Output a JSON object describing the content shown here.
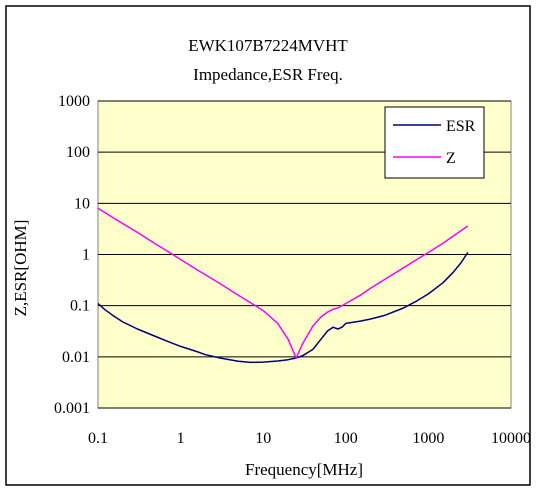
{
  "chart_data": {
    "type": "line",
    "title": "EWK107B7224MVHT",
    "subtitle": "Impedance,ESR Freq.",
    "xlabel": "Frequency[MHz]",
    "ylabel": "Z,ESR[OHM]",
    "x_scale": "log",
    "y_scale": "log",
    "xlim": [
      0.1,
      10000
    ],
    "ylim": [
      0.001,
      1000
    ],
    "x_ticks": [
      "0.1",
      "1",
      "10",
      "100",
      "1000",
      "10000"
    ],
    "y_ticks": [
      "0.001",
      "0.01",
      "0.1",
      "1",
      "10",
      "100",
      "1000"
    ],
    "grid": true,
    "legend_position": "top-right",
    "plot_background": "#ffffcc",
    "series": [
      {
        "name": "ESR",
        "color": "#000080",
        "x": [
          0.1,
          0.12,
          0.15,
          0.2,
          0.3,
          0.5,
          0.7,
          1,
          1.5,
          2,
          3,
          5,
          7,
          10,
          15,
          20,
          25,
          30,
          40,
          50,
          60,
          70,
          80,
          90,
          100,
          120,
          150,
          200,
          300,
          500,
          700,
          1000,
          1500,
          2000,
          2500,
          3000
        ],
        "y": [
          0.11,
          0.085,
          0.065,
          0.048,
          0.035,
          0.025,
          0.02,
          0.016,
          0.013,
          0.011,
          0.0095,
          0.0082,
          0.0078,
          0.0079,
          0.0083,
          0.0088,
          0.0095,
          0.0105,
          0.014,
          0.022,
          0.032,
          0.038,
          0.035,
          0.038,
          0.045,
          0.047,
          0.05,
          0.055,
          0.065,
          0.09,
          0.12,
          0.17,
          0.28,
          0.45,
          0.7,
          1.1
        ]
      },
      {
        "name": "Z",
        "color": "#ff00ff",
        "x": [
          0.1,
          0.15,
          0.2,
          0.3,
          0.5,
          0.7,
          1,
          1.5,
          2,
          3,
          5,
          7,
          10,
          15,
          20,
          25,
          30,
          40,
          50,
          60,
          70,
          80,
          100,
          150,
          200,
          300,
          500,
          700,
          1000,
          1500,
          2000,
          3000
        ],
        "y": [
          8,
          5.3,
          4,
          2.7,
          1.6,
          1.15,
          0.8,
          0.53,
          0.4,
          0.27,
          0.16,
          0.115,
          0.08,
          0.045,
          0.022,
          0.0095,
          0.018,
          0.04,
          0.06,
          0.075,
          0.085,
          0.09,
          0.11,
          0.16,
          0.22,
          0.33,
          0.55,
          0.77,
          1.1,
          1.65,
          2.3,
          3.6
        ]
      }
    ]
  }
}
